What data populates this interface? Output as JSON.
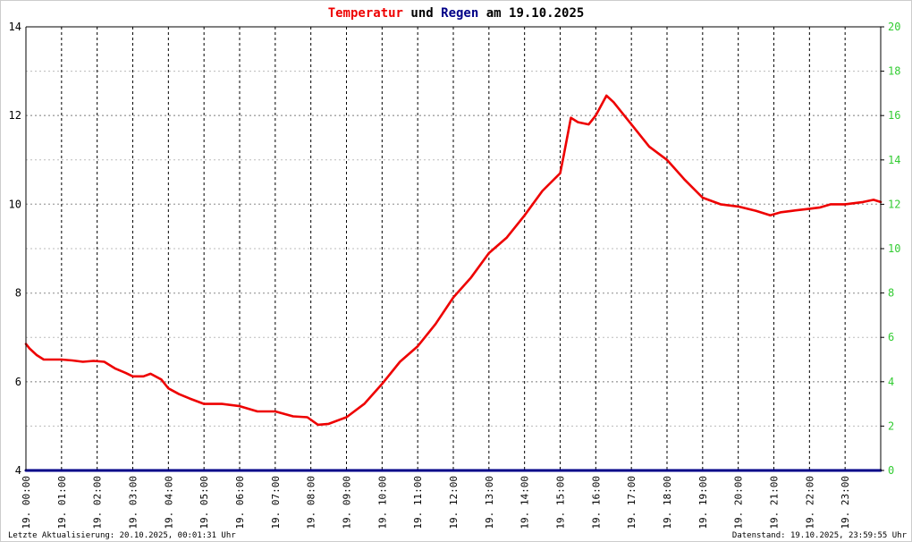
{
  "chart_data": {
    "type": "line",
    "title_parts": [
      {
        "text": "Temperatur",
        "color": "#ee0000"
      },
      {
        "text": " und ",
        "color": "#000000"
      },
      {
        "text": "Regen",
        "color": "#000088"
      },
      {
        "text": " am 19.10.2025",
        "color": "#000000"
      }
    ],
    "x_tick_labels": [
      "19. 00:00",
      "19. 01:00",
      "19. 02:00",
      "19. 03:00",
      "19. 04:00",
      "19. 05:00",
      "19. 06:00",
      "19. 07:00",
      "19. 08:00",
      "19. 09:00",
      "19. 10:00",
      "19. 11:00",
      "19. 12:00",
      "19. 13:00",
      "19. 14:00",
      "19. 15:00",
      "19. 16:00",
      "19. 17:00",
      "19. 18:00",
      "19. 19:00",
      "19. 20:00",
      "19. 21:00",
      "19. 22:00",
      "19. 23:00"
    ],
    "xlim_hours": [
      0,
      24
    ],
    "y_left": {
      "ticks": [
        "4",
        "6",
        "8",
        "10",
        "12",
        "14"
      ],
      "ylim": [
        4,
        14
      ]
    },
    "y_right": {
      "ticks": [
        "0",
        "2",
        "4",
        "6",
        "8",
        "10",
        "12",
        "14",
        "16",
        "18",
        "20"
      ],
      "ylim": [
        0,
        20
      ]
    },
    "grid": true,
    "series": [
      {
        "color": "#ee0000",
        "axis": "left",
        "x_hours": [
          0,
          0.1,
          0.3,
          0.5,
          0.7,
          1.0,
          1.3,
          1.6,
          1.9,
          2.2,
          2.5,
          2.8,
          3.0,
          3.3,
          3.5,
          3.8,
          4.0,
          4.3,
          4.6,
          5.0,
          5.5,
          6.0,
          6.5,
          7.0,
          7.5,
          7.9,
          8.2,
          8.5,
          9.0,
          9.5,
          10.0,
          10.5,
          11.0,
          11.5,
          12.0,
          12.5,
          13.0,
          13.5,
          14.0,
          14.5,
          15.0,
          15.1,
          15.3,
          15.5,
          15.8,
          16.0,
          16.3,
          16.5,
          16.8,
          17.0,
          17.5,
          18.0,
          18.5,
          19.0,
          19.5,
          20.0,
          20.5,
          20.9,
          21.2,
          21.5,
          22.0,
          22.3,
          22.6,
          23.0,
          23.5,
          23.8,
          24.0
        ],
        "y": [
          6.85,
          6.75,
          6.6,
          6.5,
          6.5,
          6.5,
          6.48,
          6.45,
          6.47,
          6.45,
          6.3,
          6.2,
          6.12,
          6.12,
          6.18,
          6.05,
          5.85,
          5.72,
          5.62,
          5.5,
          5.5,
          5.45,
          5.33,
          5.33,
          5.22,
          5.2,
          5.03,
          5.05,
          5.2,
          5.5,
          5.95,
          6.45,
          6.8,
          7.3,
          7.9,
          8.35,
          8.9,
          9.25,
          9.75,
          10.3,
          10.7,
          11.1,
          11.95,
          11.85,
          11.8,
          12.0,
          12.45,
          12.3,
          12.0,
          11.8,
          11.3,
          11.0,
          10.55,
          10.15,
          10.0,
          9.95,
          9.85,
          9.75,
          9.82,
          9.85,
          9.9,
          9.93,
          10.0,
          10.0,
          10.05,
          10.1,
          10.05
        ]
      },
      {
        "color": "#000088",
        "axis": "right",
        "x_hours": [
          0,
          24
        ],
        "y": [
          0,
          0
        ]
      }
    ]
  },
  "footer": {
    "left": "Letzte Aktualisierung: 20.10.2025, 00:01:31 Uhr",
    "right": "Datenstand: 19.10.2025, 23:59:55 Uhr"
  }
}
